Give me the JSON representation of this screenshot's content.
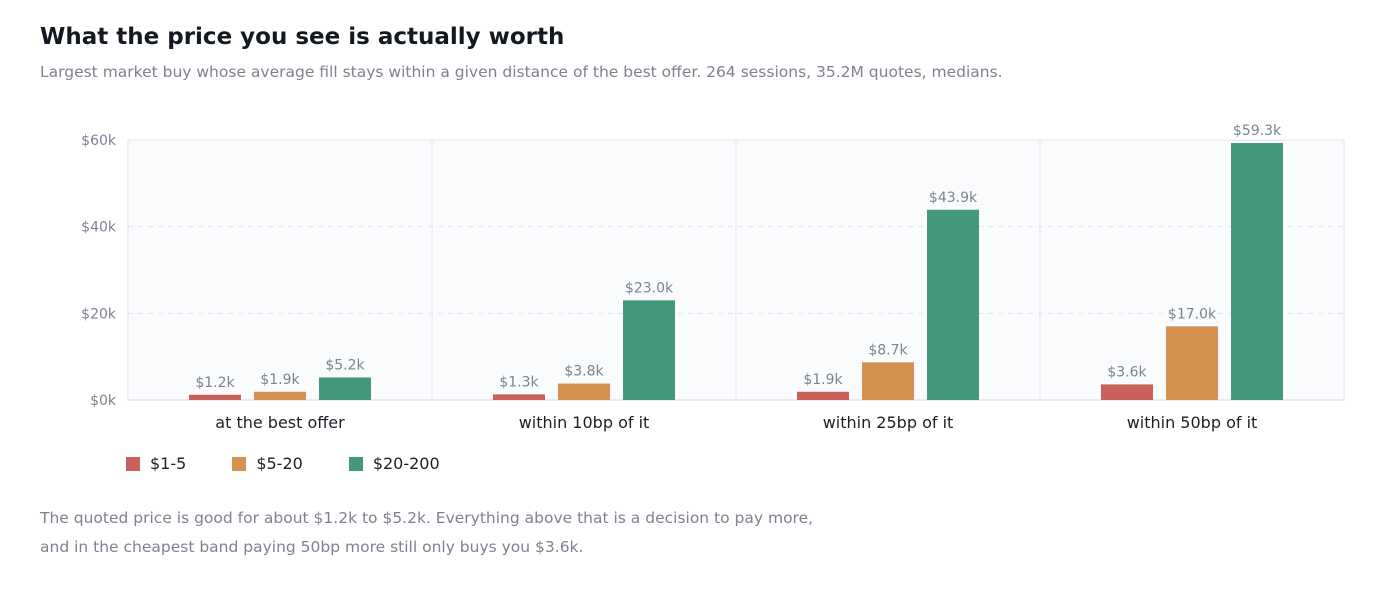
{
  "title": "What the price you see is actually worth",
  "subtitle": "Largest market buy whose average fill stays within a given distance of the best offer. 264 sessions, 35.2M quotes, medians.",
  "note": {
    "line1": "The quoted price is good for about $1.2k to $5.2k. Everything above that is a decision to pay more,",
    "line2": "and in the cheapest band paying 50bp more still only buys you $3.6k."
  },
  "colors": {
    "series": [
      "#c9605c",
      "#d4914f",
      "#43977a"
    ],
    "plot_bg": "#fafbfd",
    "grid": "#e1e4ea",
    "axis_text": "#7d8290",
    "label_text": "#7d8290",
    "category_text": "#1c1f26"
  },
  "chart_data": {
    "type": "bar",
    "categories": [
      "at the best offer",
      "within 10bp of it",
      "within 25bp of it",
      "within 50bp of it"
    ],
    "series": [
      {
        "name": "$1-5",
        "values": [
          1.2,
          1.3,
          1.9,
          3.6
        ],
        "labels": [
          "$1.2k",
          "$1.3k",
          "$1.9k",
          "$3.6k"
        ]
      },
      {
        "name": "$5-20",
        "values": [
          1.9,
          3.8,
          8.7,
          17.0
        ],
        "labels": [
          "$1.9k",
          "$3.8k",
          "$8.7k",
          "$17.0k"
        ]
      },
      {
        "name": "$20-200",
        "values": [
          5.2,
          23.0,
          43.9,
          59.3
        ],
        "labels": [
          "$5.2k",
          "$23.0k",
          "$43.9k",
          "$59.3k"
        ]
      }
    ],
    "ylim": [
      0,
      60
    ],
    "yticks": [
      {
        "value": 0,
        "label": "$0k"
      },
      {
        "value": 20,
        "label": "$20k"
      },
      {
        "value": 40,
        "label": "$40k"
      },
      {
        "value": 60,
        "label": "$60k"
      }
    ],
    "grid": true,
    "legend_position": "bottom-left"
  }
}
